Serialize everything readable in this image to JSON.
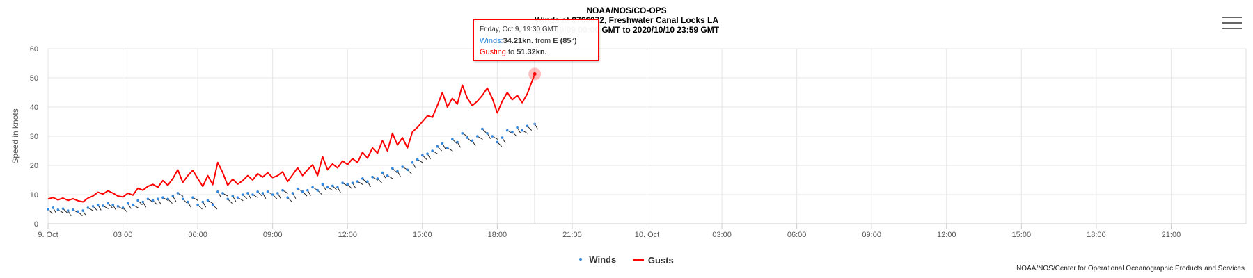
{
  "title": {
    "line1": "NOAA/NOS/CO-OPS",
    "line2": "Winds at 8766072, Freshwater Canal Locks LA",
    "line3": "2020/10/09 00:00 GMT to 2020/10/10 23:59 GMT"
  },
  "menu_icon": "hamburger-menu-icon",
  "legend": {
    "winds": "Winds",
    "gusts": "Gusts"
  },
  "credit": "NOAA/NOS/Center for Operational Oceanographic Products and Services",
  "tooltip": {
    "time": "Friday, Oct 9, 19:30 GMT",
    "winds_label": "Winds:",
    "winds_value": "34.21kn.",
    "from_text": "from",
    "direction": "E (85°)",
    "gust_label": "Gusting",
    "to_text": "to",
    "gust_value": "51.32kn."
  },
  "colors": {
    "winds": "#3388dd",
    "gusts": "#ff0000"
  },
  "chart_data": {
    "type": "line",
    "ylabel": "Speed in knots",
    "ylim": [
      0,
      60
    ],
    "yticks": [
      0,
      10,
      20,
      30,
      40,
      50,
      60
    ],
    "xlim_hours": [
      0,
      48
    ],
    "xticks": [
      {
        "h": 0,
        "label": "9. Oct"
      },
      {
        "h": 3,
        "label": "03:00"
      },
      {
        "h": 6,
        "label": "06:00"
      },
      {
        "h": 9,
        "label": "09:00"
      },
      {
        "h": 12,
        "label": "12:00"
      },
      {
        "h": 15,
        "label": "15:00"
      },
      {
        "h": 18,
        "label": "18:00"
      },
      {
        "h": 21,
        "label": "21:00"
      },
      {
        "h": 24,
        "label": "10. Oct"
      },
      {
        "h": 27,
        "label": "03:00"
      },
      {
        "h": 30,
        "label": "06:00"
      },
      {
        "h": 33,
        "label": "09:00"
      },
      {
        "h": 36,
        "label": "12:00"
      },
      {
        "h": 39,
        "label": "15:00"
      },
      {
        "h": 42,
        "label": "18:00"
      },
      {
        "h": 45,
        "label": "21:00"
      }
    ],
    "grid": true,
    "legend_position": "bottom",
    "series": [
      {
        "name": "Gusts",
        "x": [
          0,
          0.2,
          0.4,
          0.6,
          0.8,
          1.0,
          1.2,
          1.4,
          1.6,
          1.8,
          2.0,
          2.2,
          2.4,
          2.6,
          2.8,
          3.0,
          3.2,
          3.4,
          3.6,
          3.8,
          4.0,
          4.2,
          4.4,
          4.6,
          4.8,
          5.0,
          5.2,
          5.4,
          5.6,
          5.8,
          6.0,
          6.2,
          6.4,
          6.6,
          6.8,
          7.0,
          7.2,
          7.4,
          7.6,
          7.8,
          8.0,
          8.2,
          8.4,
          8.6,
          8.8,
          9.0,
          9.2,
          9.4,
          9.6,
          9.8,
          10.0,
          10.2,
          10.4,
          10.6,
          10.8,
          11.0,
          11.2,
          11.4,
          11.6,
          11.8,
          12.0,
          12.2,
          12.4,
          12.6,
          12.8,
          13.0,
          13.2,
          13.4,
          13.6,
          13.8,
          14.0,
          14.2,
          14.4,
          14.6,
          14.8,
          15.0,
          15.2,
          15.4,
          15.6,
          15.8,
          16.0,
          16.2,
          16.4,
          16.6,
          16.8,
          17.0,
          17.2,
          17.4,
          17.6,
          17.8,
          18.0,
          18.2,
          18.4,
          18.6,
          18.8,
          19.0,
          19.2,
          19.5
        ],
        "values": [
          8.5,
          9,
          8.2,
          8.8,
          8,
          8.6,
          7.9,
          7.5,
          8.8,
          9.5,
          10.8,
          10.2,
          11.3,
          10.5,
          9.5,
          9.2,
          10.5,
          9.8,
          12.2,
          11.5,
          12.8,
          13.5,
          12.5,
          14.8,
          13.2,
          15.5,
          18.5,
          14.2,
          16.5,
          18.3,
          15.5,
          12.8,
          16.5,
          13.4,
          21.0,
          17.5,
          13.2,
          15.3,
          13.6,
          14.8,
          16.5,
          15.0,
          17.2,
          16.0,
          17.5,
          15.8,
          16.5,
          17.8,
          14.5,
          16.8,
          19.2,
          16.5,
          18.5,
          20.2,
          16.5,
          23.0,
          18.5,
          20.5,
          19.2,
          21.5,
          20.3,
          22.3,
          21.0,
          24.5,
          22.5,
          26.0,
          24.2,
          28.5,
          25.0,
          31.0,
          27.0,
          29.5,
          26.0,
          31.5,
          33.0,
          35.0,
          37.0,
          36.5,
          40.5,
          45.0,
          40.0,
          43.0,
          41.0,
          47.5,
          43.0,
          40.5,
          42.0,
          44.0,
          46.5,
          43.0,
          38.0,
          42.0,
          45.0,
          42.5,
          44.0,
          41.5,
          44.5,
          51.32
        ]
      },
      {
        "name": "Winds",
        "x": [
          0,
          0.2,
          0.4,
          0.6,
          0.8,
          1.0,
          1.2,
          1.4,
          1.6,
          1.8,
          2.0,
          2.2,
          2.4,
          2.6,
          2.8,
          3.0,
          3.2,
          3.4,
          3.6,
          3.8,
          4.0,
          4.2,
          4.4,
          4.6,
          4.8,
          5.0,
          5.2,
          5.4,
          5.6,
          5.8,
          6.0,
          6.2,
          6.4,
          6.6,
          6.8,
          7.0,
          7.2,
          7.4,
          7.6,
          7.8,
          8.0,
          8.2,
          8.4,
          8.6,
          8.8,
          9.0,
          9.2,
          9.4,
          9.6,
          9.8,
          10.0,
          10.2,
          10.4,
          10.6,
          10.8,
          11.0,
          11.2,
          11.4,
          11.6,
          11.8,
          12.0,
          12.2,
          12.4,
          12.6,
          12.8,
          13.0,
          13.2,
          13.4,
          13.6,
          13.8,
          14.0,
          14.2,
          14.4,
          14.6,
          14.8,
          15.0,
          15.2,
          15.4,
          15.6,
          15.8,
          16.0,
          16.2,
          16.4,
          16.6,
          16.8,
          17.0,
          17.2,
          17.4,
          17.6,
          17.8,
          18.0,
          18.2,
          18.4,
          18.6,
          18.8,
          19.0,
          19.2,
          19.5
        ],
        "values": [
          5,
          5.5,
          4.8,
          5.2,
          4.5,
          4.8,
          4.2,
          4.5,
          5.5,
          6.0,
          6.5,
          6.2,
          7.0,
          6.5,
          6.0,
          5.5,
          7.0,
          6.5,
          8.0,
          7.5,
          8.5,
          8.0,
          8.5,
          9.0,
          8.5,
          9.5,
          10.5,
          8.5,
          7.5,
          9.0,
          6.5,
          7.5,
          8.0,
          6.5,
          11.0,
          10.5,
          8.5,
          9.5,
          9.0,
          10.0,
          10.5,
          10.0,
          11.0,
          10.5,
          11.0,
          10.0,
          10.5,
          11.5,
          9.0,
          10.5,
          12.0,
          11.0,
          11.5,
          12.5,
          11.5,
          13.5,
          12.5,
          13.0,
          12.5,
          14.0,
          13.5,
          14.0,
          14.5,
          15.5,
          14.5,
          16.0,
          15.5,
          17.5,
          16.5,
          19.0,
          18.0,
          19.5,
          18.5,
          21.0,
          22.0,
          23.5,
          24.0,
          25.0,
          26.5,
          27.5,
          26.0,
          29.0,
          28.0,
          31.0,
          29.5,
          28.5,
          30.0,
          32.5,
          31.0,
          30.0,
          28.0,
          29.5,
          32.0,
          31.5,
          33.0,
          32.0,
          33.5,
          34.21
        ]
      }
    ],
    "highlighted_point": {
      "x_hours": 19.5,
      "gust": 51.32,
      "wind": 34.21,
      "direction_deg": 85
    }
  }
}
